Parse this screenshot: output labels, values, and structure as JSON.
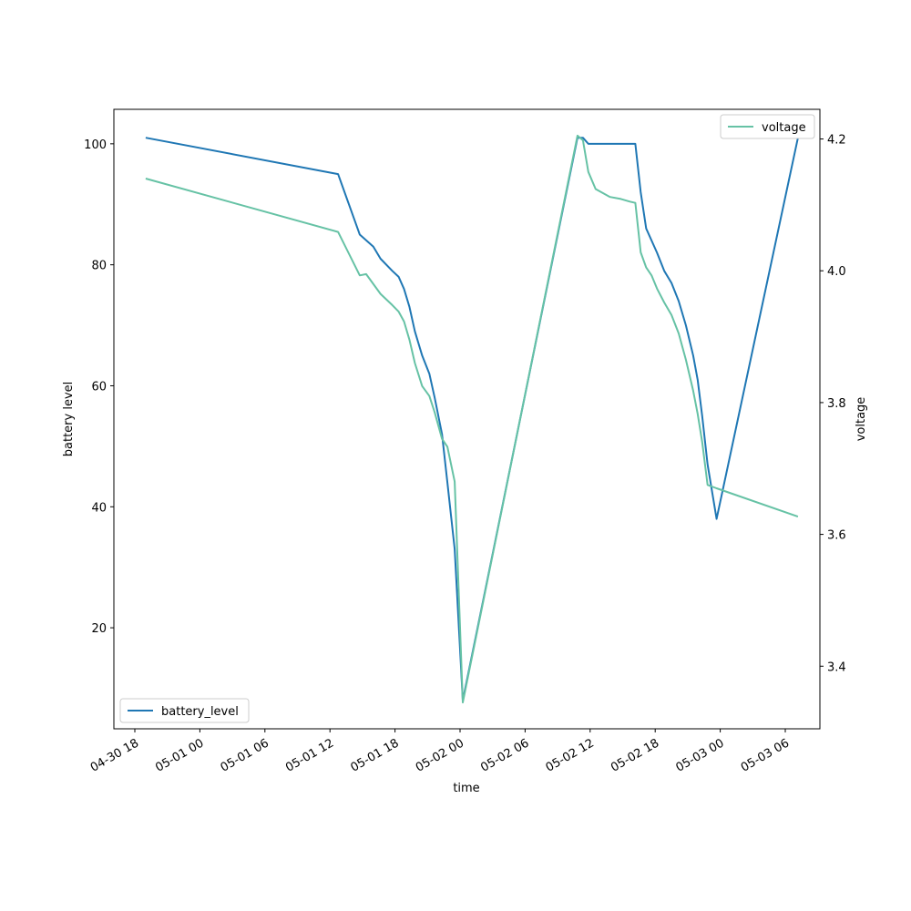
{
  "chart_data": {
    "type": "line",
    "title": "",
    "xlabel": "time",
    "ylabel": "battery level",
    "y2label": "voltage",
    "x_ticks": [
      "04-30 18",
      "05-01 00",
      "05-01 06",
      "05-01 12",
      "05-01 18",
      "05-02 00",
      "05-02 06",
      "05-02 12",
      "05-02 18",
      "05-03 00",
      "05-03 06"
    ],
    "y_ticks": [
      "20",
      "40",
      "60",
      "80",
      "100"
    ],
    "y2_ticks": [
      "3.4",
      "3.6",
      "3.8",
      "4.0",
      "4.2"
    ],
    "x_start": "2024-04-30 18:00",
    "ylim": [
      3.3,
      105.7
    ],
    "y2lim": [
      3.305,
      4.245
    ],
    "series": [
      {
        "name": "battery_level",
        "axis": "left",
        "color": "#1f77b4",
        "x": [
          "04-30 19:00",
          "05-01 12:45",
          "05-01 14:45",
          "05-01 16:00",
          "05-01 16:40",
          "05-01 17:45",
          "05-01 18:20",
          "05-01 18:50",
          "05-01 19:20",
          "05-01 19:50",
          "05-01 20:30",
          "05-01 21:10",
          "05-01 21:40",
          "05-01 22:20",
          "05-01 22:50",
          "05-01 23:30",
          "05-02 00:15",
          "05-02 10:50",
          "05-02 11:20",
          "05-02 11:50",
          "05-02 16:10",
          "05-02 16:40",
          "05-02 17:10",
          "05-02 18:10",
          "05-02 18:50",
          "05-02 19:30",
          "05-02 20:10",
          "05-02 20:50",
          "05-02 21:30",
          "05-02 21:55",
          "05-02 22:20",
          "05-02 22:50",
          "05-02 23:40",
          "05-03 07:10"
        ],
        "y": [
          101,
          95,
          85,
          83,
          81,
          79,
          78,
          76,
          73,
          69,
          65,
          62,
          58,
          52,
          44,
          33,
          8,
          101,
          101,
          100,
          100,
          92,
          86,
          82,
          79,
          77,
          74,
          70,
          65,
          61,
          55,
          47,
          38,
          101
        ]
      },
      {
        "name": "voltage",
        "axis": "right",
        "color": "#66c2a5",
        "x": [
          "04-30 19:00",
          "05-01 12:45",
          "05-01 14:45",
          "05-01 15:20",
          "05-01 16:40",
          "05-01 17:45",
          "05-01 18:20",
          "05-01 18:50",
          "05-01 19:20",
          "05-01 19:50",
          "05-01 20:30",
          "05-01 21:10",
          "05-01 21:40",
          "05-01 22:20",
          "05-01 22:50",
          "05-01 23:30",
          "05-02 00:15",
          "05-02 10:50",
          "05-02 11:20",
          "05-02 11:50",
          "05-02 12:30",
          "05-02 13:50",
          "05-02 14:50",
          "05-02 15:40",
          "05-02 16:10",
          "05-02 16:40",
          "05-02 17:10",
          "05-02 17:40",
          "05-02 18:10",
          "05-02 18:50",
          "05-02 19:30",
          "05-02 20:10",
          "05-02 20:50",
          "05-02 21:30",
          "05-02 21:55",
          "05-02 22:20",
          "05-02 22:50",
          "05-02 23:40",
          "05-03 07:10"
        ],
        "y": [
          4.14,
          4.059,
          3.993,
          3.995,
          3.965,
          3.948,
          3.938,
          3.923,
          3.895,
          3.86,
          3.825,
          3.81,
          3.785,
          3.745,
          3.733,
          3.68,
          3.345,
          4.205,
          4.198,
          4.15,
          4.124,
          4.112,
          4.109,
          4.105,
          4.103,
          4.028,
          4.005,
          3.993,
          3.973,
          3.952,
          3.933,
          3.905,
          3.865,
          3.818,
          3.783,
          3.74,
          3.675,
          3.67,
          3.627
        ]
      }
    ],
    "legends": [
      {
        "series": "battery_level",
        "placement": "lower-left",
        "label": "battery_level"
      },
      {
        "series": "voltage",
        "placement": "upper-right",
        "label": "voltage"
      }
    ],
    "grid": false
  }
}
